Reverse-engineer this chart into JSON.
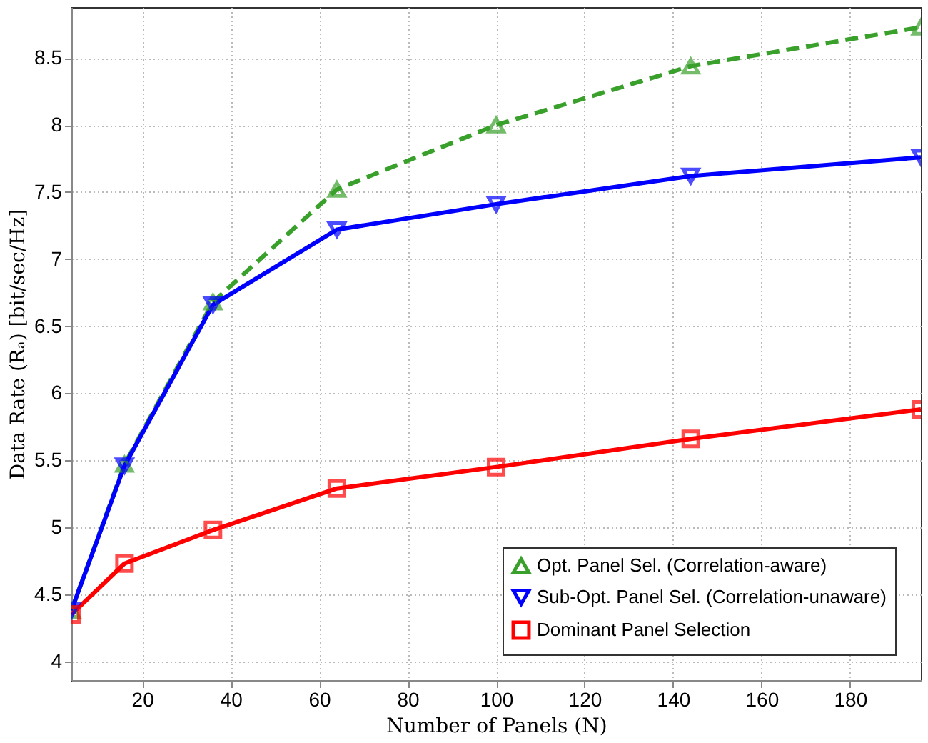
{
  "chart_data": {
    "type": "line",
    "xlabel": "Number of Panels (N)",
    "ylabel": "Data Rate (Rₐ) [bit/sec/Hz]",
    "x": [
      4,
      16,
      36,
      64,
      100,
      144,
      196
    ],
    "series": [
      {
        "name": "Opt. Panel Sel. (Correlation-aware)",
        "color": "#3aa02c",
        "marker": "triangle",
        "line_style": "dashed",
        "values": [
          4.38,
          5.47,
          6.68,
          7.52,
          8.0,
          8.44,
          8.73
        ]
      },
      {
        "name": "Sub-Opt. Panel Sel. (Correlation-unaware)",
        "color": "#0000ff",
        "marker": "triangle-down",
        "line_style": "solid",
        "values": [
          4.38,
          5.46,
          6.66,
          7.22,
          7.41,
          7.62,
          7.76
        ]
      },
      {
        "name": "Dominant Panel Selection",
        "color": "#ff0000",
        "marker": "square",
        "line_style": "solid",
        "values": [
          4.35,
          4.73,
          4.98,
          5.29,
          5.45,
          5.66,
          5.88
        ]
      }
    ],
    "xlim": [
      4,
      196
    ],
    "xticks": [
      20,
      40,
      60,
      80,
      100,
      120,
      140,
      160,
      180
    ],
    "ylim": [
      3.86,
      8.88
    ],
    "yticks": [
      4,
      4.5,
      5,
      5.5,
      6,
      6.5,
      7,
      7.5,
      8,
      8.5
    ],
    "grid": true,
    "legend": "bottom right"
  }
}
